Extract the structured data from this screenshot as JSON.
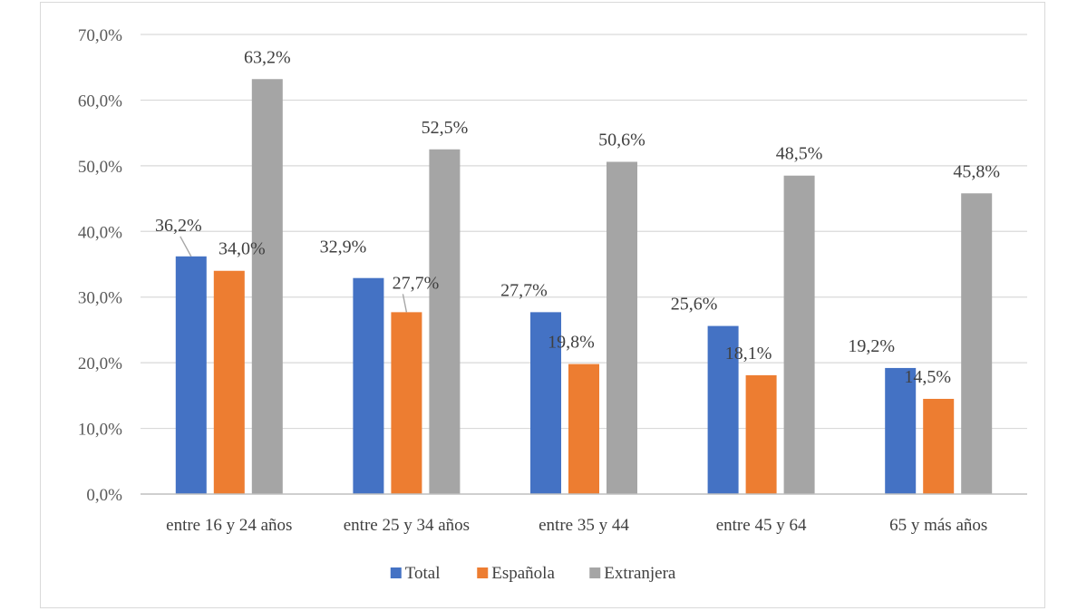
{
  "chart_data": {
    "type": "bar",
    "title": "",
    "xlabel": "",
    "ylabel": "",
    "ylim": [
      0,
      70
    ],
    "y_ticks": [
      "0,0%",
      "10,0%",
      "20,0%",
      "30,0%",
      "40,0%",
      "50,0%",
      "60,0%",
      "70,0%"
    ],
    "y_tick_values": [
      0,
      10,
      20,
      30,
      40,
      50,
      60,
      70
    ],
    "grid": true,
    "legend_position": "bottom",
    "categories": [
      "entre 16 y 24 años",
      "entre 25 y 34 años",
      "entre 35 y 44",
      "entre 45 y 64",
      "65 y más años"
    ],
    "series": [
      {
        "name": "Total",
        "color": "#4472c4",
        "values": [
          36.2,
          32.9,
          27.7,
          25.6,
          19.2
        ],
        "labels": [
          "36,2%",
          "32,9%",
          "27,7%",
          "25,6%",
          "19,2%"
        ]
      },
      {
        "name": "Española",
        "color": "#ed7d31",
        "values": [
          34.0,
          27.7,
          19.8,
          18.1,
          14.5
        ],
        "labels": [
          "34,0%",
          "27,7%",
          "19,8%",
          "18,1%",
          "14,5%"
        ]
      },
      {
        "name": "Extranjera",
        "color": "#a5a5a5",
        "values": [
          63.2,
          52.5,
          50.6,
          48.5,
          45.8
        ],
        "labels": [
          "63,2%",
          "52,5%",
          "50,6%",
          "48,5%",
          "45,8%"
        ]
      }
    ]
  }
}
